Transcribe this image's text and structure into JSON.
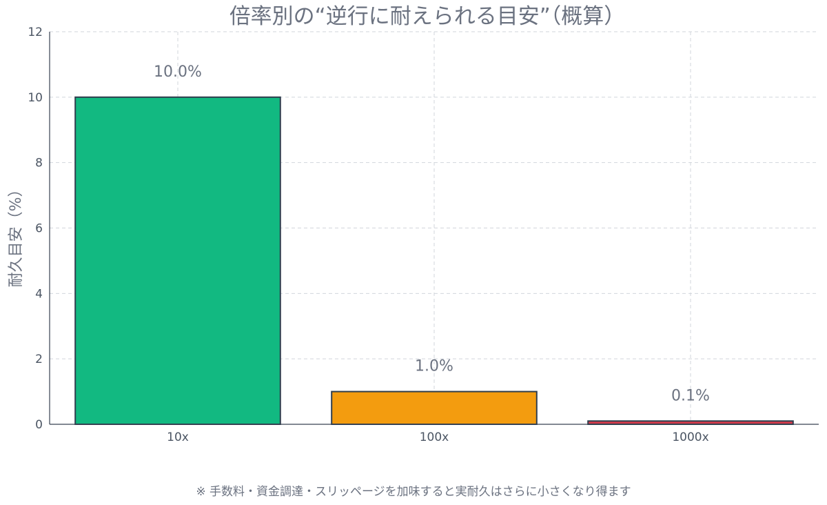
{
  "chart_data": {
    "type": "bar",
    "title": "倍率別の“逆行に耐えられる目安”（概算）",
    "xlabel": "",
    "ylabel": "耐久目安（%）",
    "categories": [
      "10x",
      "100x",
      "1000x"
    ],
    "values": [
      10.0,
      1.0,
      0.1
    ],
    "value_labels": [
      "10.0%",
      "1.0%",
      "0.1%"
    ],
    "colors": [
      "#12b981",
      "#f39c0f",
      "#d73a4a"
    ],
    "bar_edge_color": "#2f3e4e",
    "ylim": [
      0,
      12
    ],
    "yticks": [
      "0",
      "2",
      "4",
      "6",
      "8",
      "10",
      "12"
    ],
    "grid": true,
    "grid_style": "dashed",
    "legend": "none",
    "annotation": "※ 手数料・資金調達・スリッページを加味すると実耐久はさらに小さくなり得ます"
  }
}
